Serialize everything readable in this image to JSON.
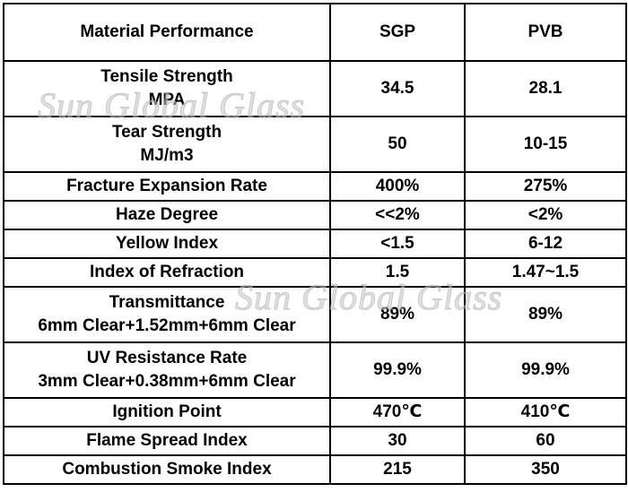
{
  "table": {
    "headers": [
      "Material Performance",
      "SGP",
      "PVB"
    ],
    "rows": [
      {
        "property": [
          "Tensile Strength",
          "MPA"
        ],
        "sgp": "34.5",
        "pvb": "28.1"
      },
      {
        "property": [
          "Tear Strength",
          "MJ/m3"
        ],
        "sgp": "50",
        "pvb": "10-15"
      },
      {
        "property": [
          "Fracture Expansion Rate"
        ],
        "sgp": "400%",
        "pvb": "275%"
      },
      {
        "property": [
          "Haze Degree"
        ],
        "sgp": "<<2%",
        "pvb": "<2%"
      },
      {
        "property": [
          "Yellow Index"
        ],
        "sgp": "<1.5",
        "pvb": "6-12"
      },
      {
        "property": [
          "Index of Refraction"
        ],
        "sgp": "1.5",
        "pvb": "1.47~1.5"
      },
      {
        "property": [
          "Transmittance",
          "6mm Clear+1.52mm+6mm Clear"
        ],
        "sgp": "89%",
        "pvb": "89%"
      },
      {
        "property": [
          "UV Resistance Rate",
          "3mm Clear+0.38mm+6mm Clear"
        ],
        "sgp": "99.9%",
        "pvb": "99.9%"
      },
      {
        "property": [
          "Ignition Point"
        ],
        "sgp": "470℃",
        "pvb": "410℃"
      },
      {
        "property": [
          "Flame Spread Index"
        ],
        "sgp": "30",
        "pvb": "60"
      },
      {
        "property": [
          "Combustion Smoke Index"
        ],
        "sgp": "215",
        "pvb": "350"
      }
    ]
  },
  "watermark": "Sun Global Glass"
}
